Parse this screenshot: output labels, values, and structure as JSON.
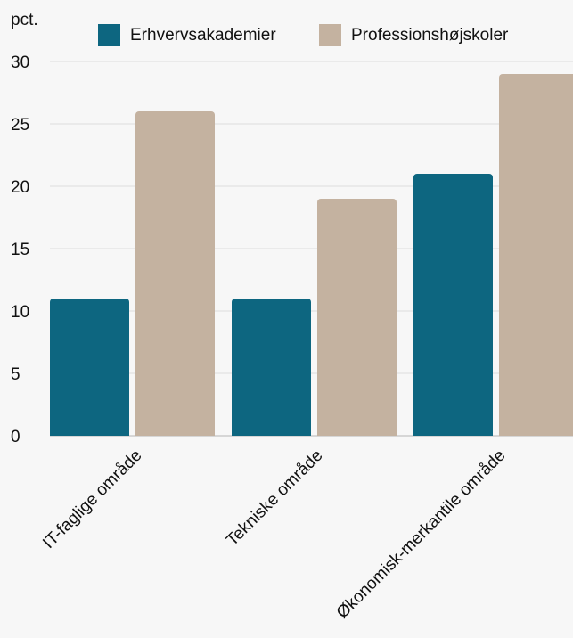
{
  "chart_data": {
    "type": "bar",
    "ylabel": "pct.",
    "categories": [
      "IT-faglige område",
      "Tekniske område",
      "Økonomisk-merkantile område"
    ],
    "series": [
      {
        "name": "Erhvervsakademier",
        "values": [
          11,
          11,
          21
        ],
        "color": "#0d6680"
      },
      {
        "name": "Professionshøjskoler",
        "values": [
          26,
          19,
          29
        ],
        "color": "#c4b2a0"
      }
    ],
    "ylim": [
      0,
      30
    ],
    "yticks": [
      0,
      5,
      10,
      15,
      20,
      25,
      30
    ],
    "grid": true,
    "legend_position": "top"
  }
}
